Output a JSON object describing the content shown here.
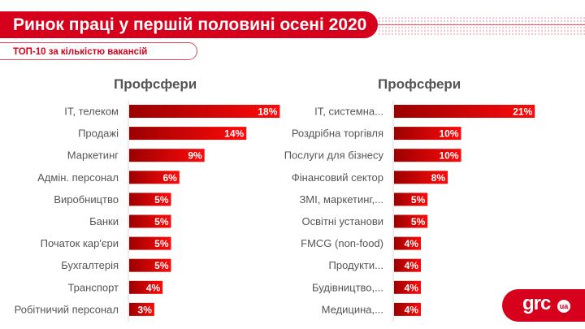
{
  "header": {
    "title": "Ринок праці у першій половині осені 2020",
    "subtitle": "ТОП-10 за кількістю вакансій"
  },
  "logo": {
    "text": "grc",
    "badge": "ua"
  },
  "colors": {
    "brand": "#d6001c",
    "bar_dark": "#9b0000",
    "bar_light": "#ff0a0a"
  },
  "chart_data": [
    {
      "type": "bar",
      "orientation": "horizontal",
      "title": "Профсфери",
      "categories": [
        "IT, телеком",
        "Продажі",
        "Маркетинг",
        "Адмін. персонал",
        "Виробництво",
        "Банки",
        "Початок кар'єри",
        "Бухгалтерія",
        "Транспорт",
        "Робітничий персонал"
      ],
      "values": [
        18,
        14,
        9,
        6,
        5,
        5,
        5,
        5,
        4,
        3
      ],
      "value_labels": [
        "18%",
        "14%",
        "9%",
        "6%",
        "5%",
        "5%",
        "5%",
        "5%",
        "4%",
        "3%"
      ],
      "unit": "%"
    },
    {
      "type": "bar",
      "orientation": "horizontal",
      "title": "Профсфери",
      "categories": [
        "IT, системна...",
        "Роздрібна торгівля",
        "Послуги для бізнесу",
        "Фінансовий сектор",
        "ЗМІ, маркетинг,...",
        "Освітні установи",
        "FMCG (non-food)",
        "Продукти...",
        "Будівництво,...",
        "Медицина,..."
      ],
      "values": [
        21,
        10,
        10,
        8,
        5,
        5,
        4,
        4,
        4,
        4
      ],
      "value_labels": [
        "21%",
        "10%",
        "10%",
        "8%",
        "5%",
        "5%",
        "4%",
        "4%",
        "4%",
        "4%"
      ],
      "unit": "%"
    }
  ]
}
